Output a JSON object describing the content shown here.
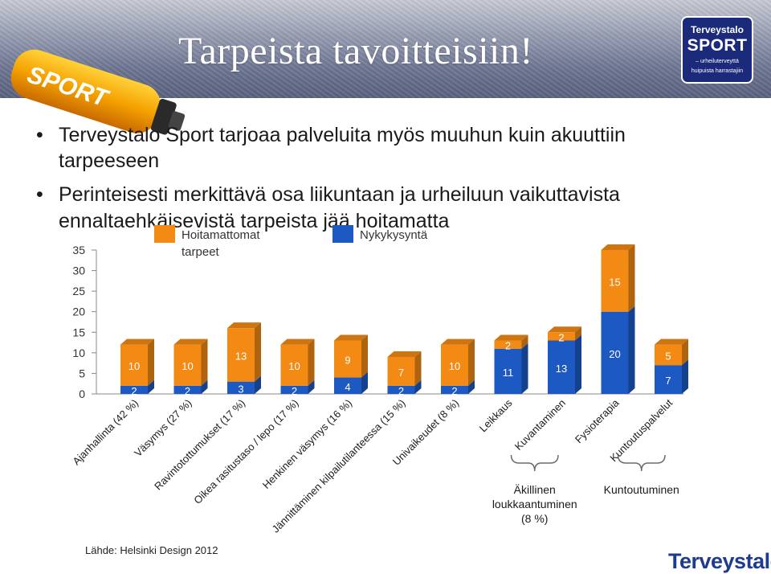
{
  "slide": {
    "title": "Tarpeista tavoitteisiin!",
    "bottle_text": "SPORT",
    "logo": {
      "line1": "Terveystalo",
      "line2": "SPORT",
      "line3": "– urheiluterveyttä",
      "line4": "huipuista harrastajiin"
    },
    "bullets": [
      {
        "marker": "•",
        "lines": [
          "Terveystalo Sport tarjoaa palveluita myös muuhun kuin akuuttiin",
          "tarpeeseen"
        ]
      },
      {
        "marker": "•",
        "lines": [
          "Perinteisesti merkittävä osa liikuntaan ja urheiluun vaikuttavista",
          "ennaltaehkäisevistä tarpeista jää hoitamatta"
        ]
      }
    ],
    "source": "Lähde: Helsinki Design 2012",
    "footer_logo": "Terveystalo"
  },
  "colors": {
    "orange": "#f28a14",
    "blue": "#1c59c2",
    "title": "#ffffff",
    "brand_blue": "#1e3b8f"
  },
  "chart_data": {
    "type": "bar",
    "stacked": true,
    "three_d": true,
    "categories": [
      "Ajanhallinta (42 %)",
      "Väsymys (27 %)",
      "Ravintotottumukset (17 %)",
      "Oikea rasitustaso / lepo (17 %)",
      "Henkinen väsymys (16 %)",
      "Jännittäminen kilpailutilanteessa (15 %)",
      "Univaikeudet (8 %)",
      "Leikkaus",
      "Kuvantaminen",
      "Fysioterapia",
      "Kuntoutuspalvelut"
    ],
    "series": [
      {
        "name": "Nykykysyntä",
        "color": "#1c59c2",
        "values": [
          2,
          2,
          3,
          2,
          4,
          2,
          2,
          11,
          13,
          20,
          7
        ]
      },
      {
        "name": "Hoitamattomat tarpeet",
        "color": "#f28a14",
        "values": [
          10,
          10,
          13,
          10,
          9,
          7,
          10,
          2,
          2,
          15,
          5
        ]
      }
    ],
    "legend_order": [
      "Hoitamattomat tarpeet",
      "Nykykysyntä"
    ],
    "legend_position": "top",
    "ylim": [
      0,
      35
    ],
    "yticks": [
      "0",
      "5",
      "10",
      "15",
      "20",
      "25",
      "30",
      "35"
    ],
    "grid": false,
    "groups": [
      {
        "label": "Äkillinen loukkaantuminen (8 %)",
        "lines": [
          "Äkillinen",
          "loukkaantuminen",
          "(8 %)"
        ],
        "from": 7,
        "to": 8
      },
      {
        "label": "Kuntoutuminen",
        "lines": [
          "Kuntoutuminen"
        ],
        "from": 9,
        "to": 10
      }
    ]
  }
}
